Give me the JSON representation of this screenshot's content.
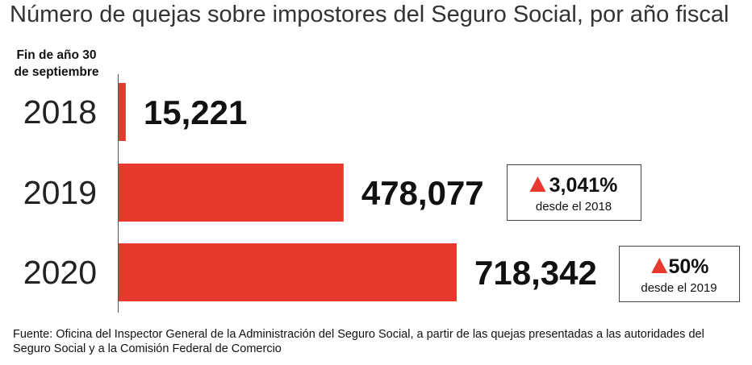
{
  "chart_data": {
    "type": "bar",
    "orientation": "horizontal",
    "title": "Número de quejas sobre impostores del Seguro Social, por año fiscal",
    "category_header": [
      "Fin de año 30",
      "de septiembre"
    ],
    "categories": [
      "2018",
      "2019",
      "2020"
    ],
    "values": [
      15221,
      478077,
      718342
    ],
    "value_labels": [
      "15,221",
      "478,077",
      "718,342"
    ],
    "xlim": [
      0,
      718342
    ],
    "grid": false,
    "legend": "none",
    "bar_color": "#e8392f",
    "annotations": [
      null,
      {
        "change": "3,041%",
        "note": "desde el 2018",
        "direction": "up"
      },
      {
        "change": "50%",
        "note": "desde el 2019",
        "direction": "up"
      }
    ]
  },
  "source": "Fuente: Oficina del Inspector General de la Administración del Seguro Social, a partir de las quejas presentadas a las autoridades del Seguro Social y a la Comisión Federal de Comercio"
}
